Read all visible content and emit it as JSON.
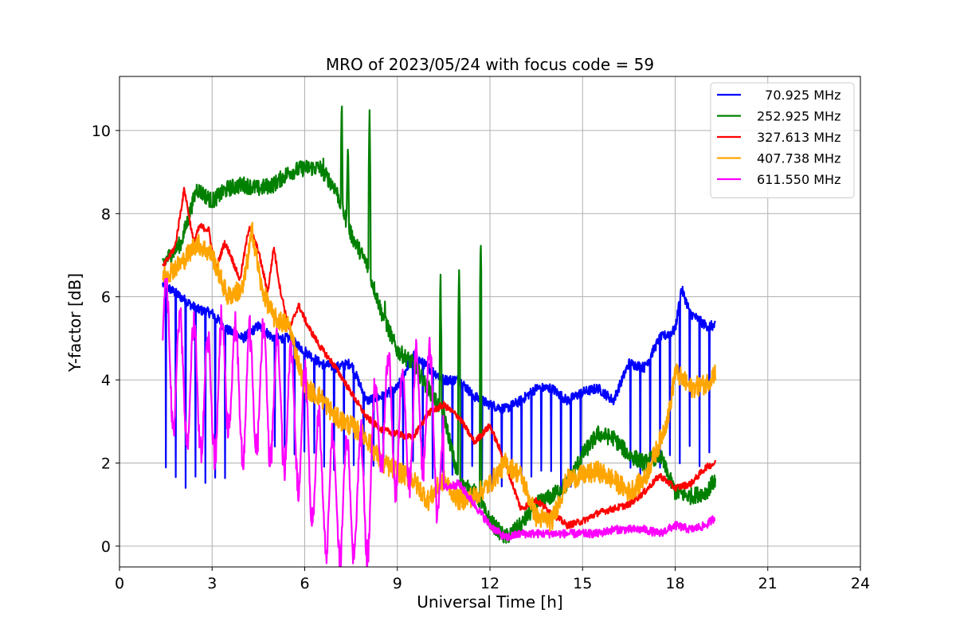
{
  "chart_data": {
    "type": "line",
    "title": "MRO of 2023/05/24 with focus code = 59",
    "xlabel": "Universal Time [h]",
    "ylabel": "Y-factor [dB]",
    "xlim": [
      0,
      24
    ],
    "ylim": [
      -0.5,
      11.3
    ],
    "xticks": [
      0,
      3,
      6,
      9,
      12,
      15,
      18,
      21,
      24
    ],
    "yticks": [
      0,
      2,
      4,
      6,
      8,
      10
    ],
    "grid": true,
    "legend_position": "top-right",
    "series": [
      {
        "name": "  70.925 MHz",
        "color": "#0000ff",
        "noise": 0.12,
        "dip_period": 0.32,
        "dip_start": 1.5,
        "dip_end": 19.3,
        "dip_value": 1.5,
        "x": [
          1.4,
          1.8,
          2.5,
          3.0,
          3.5,
          4.0,
          4.5,
          5.0,
          5.5,
          6.0,
          6.5,
          7.0,
          7.5,
          8.0,
          8.5,
          9.0,
          9.5,
          10.0,
          10.5,
          11.0,
          11.5,
          12.0,
          12.5,
          13.0,
          13.5,
          14.0,
          14.5,
          15.0,
          15.5,
          16.0,
          16.5,
          17.0,
          17.5,
          18.0,
          18.2,
          18.5,
          19.0,
          19.3
        ],
        "y": [
          6.3,
          6.1,
          5.7,
          5.6,
          5.2,
          5.0,
          5.3,
          5.0,
          5.0,
          4.7,
          4.4,
          4.3,
          4.4,
          3.5,
          3.6,
          3.8,
          4.6,
          4.3,
          4.0,
          4.0,
          3.6,
          3.4,
          3.3,
          3.5,
          3.8,
          3.8,
          3.5,
          3.7,
          3.8,
          3.5,
          4.4,
          4.3,
          5.0,
          5.2,
          6.2,
          5.6,
          5.3,
          5.3
        ]
      },
      {
        "name": "252.925 MHz",
        "color": "#008000",
        "noise": 0.2,
        "spikes": [
          [
            7.2,
            10.8
          ],
          [
            7.4,
            9.8
          ],
          [
            8.1,
            10.5
          ],
          [
            10.4,
            6.6
          ],
          [
            11.0,
            6.8
          ],
          [
            11.7,
            7.6
          ],
          [
            8.6,
            6.0
          ],
          [
            6.6,
            9.6
          ]
        ],
        "x": [
          1.4,
          2.0,
          2.5,
          3.0,
          3.5,
          4.0,
          4.5,
          5.0,
          5.5,
          6.0,
          6.5,
          7.0,
          7.5,
          8.0,
          8.5,
          9.0,
          9.5,
          10.0,
          10.5,
          11.0,
          11.5,
          12.0,
          12.5,
          13.0,
          13.5,
          14.0,
          14.5,
          15.0,
          15.5,
          16.0,
          16.5,
          17.0,
          17.5,
          18.0,
          18.5,
          19.0,
          19.3
        ],
        "y": [
          6.8,
          7.3,
          8.6,
          8.3,
          8.6,
          8.7,
          8.6,
          8.7,
          9.0,
          9.1,
          9.1,
          8.6,
          7.5,
          6.8,
          5.6,
          4.7,
          4.4,
          3.8,
          3.2,
          1.5,
          1.3,
          0.6,
          0.2,
          0.5,
          1.0,
          1.2,
          1.5,
          2.2,
          2.7,
          2.6,
          2.2,
          2.0,
          2.2,
          1.3,
          1.2,
          1.3,
          1.6
        ]
      },
      {
        "name": "327.613 MHz",
        "color": "#ff0000",
        "noise": 0.08,
        "x": [
          1.4,
          1.8,
          2.1,
          2.4,
          2.6,
          2.9,
          3.1,
          3.4,
          3.6,
          3.9,
          4.2,
          4.5,
          4.8,
          5.0,
          5.2,
          5.5,
          5.8,
          6.1,
          6.5,
          7.0,
          7.5,
          8.0,
          8.5,
          9.0,
          9.5,
          10.0,
          10.5,
          11.0,
          11.5,
          12.0,
          12.5,
          13.0,
          13.5,
          14.0,
          14.5,
          15.0,
          15.5,
          16.0,
          16.5,
          17.0,
          17.5,
          18.0,
          18.5,
          19.0,
          19.3
        ],
        "y": [
          6.7,
          7.2,
          8.6,
          7.3,
          7.7,
          7.6,
          6.6,
          7.3,
          7.0,
          6.4,
          7.7,
          7.1,
          6.1,
          7.2,
          6.2,
          5.2,
          5.8,
          5.3,
          4.8,
          4.3,
          3.7,
          3.1,
          2.8,
          2.7,
          2.6,
          3.2,
          3.4,
          3.1,
          2.5,
          2.9,
          2.0,
          0.9,
          1.1,
          0.8,
          0.5,
          0.6,
          0.8,
          0.9,
          1.0,
          1.3,
          1.7,
          1.4,
          1.5,
          1.9,
          2.0
        ]
      },
      {
        "name": "407.738 MHz",
        "color": "#ffa500",
        "noise": 0.25,
        "x": [
          1.4,
          2.0,
          2.5,
          3.0,
          3.5,
          4.0,
          4.3,
          4.6,
          5.0,
          5.5,
          6.0,
          6.5,
          7.0,
          7.5,
          8.0,
          8.5,
          9.0,
          9.5,
          10.0,
          10.5,
          11.0,
          11.5,
          12.0,
          12.5,
          13.0,
          13.5,
          14.0,
          14.5,
          15.0,
          15.5,
          16.0,
          16.5,
          17.0,
          17.5,
          17.8,
          18.0,
          18.5,
          19.0,
          19.3
        ],
        "y": [
          6.5,
          6.8,
          7.3,
          7.0,
          6.0,
          6.2,
          7.6,
          6.2,
          5.5,
          5.3,
          3.8,
          3.6,
          3.1,
          2.9,
          2.6,
          2.0,
          1.8,
          1.6,
          1.1,
          1.6,
          1.1,
          1.2,
          1.5,
          2.0,
          1.7,
          0.7,
          0.6,
          1.6,
          1.7,
          1.8,
          1.6,
          1.3,
          1.6,
          2.5,
          3.2,
          4.2,
          3.8,
          3.9,
          4.2
        ]
      },
      {
        "name": "611.550 MHz",
        "color": "#ff00ff",
        "noise": 0.1,
        "osc_end": 10.5,
        "osc_period": 0.45,
        "osc_amp": 1.9,
        "x": [
          1.4,
          2.0,
          2.5,
          3.0,
          3.5,
          4.0,
          4.5,
          5.0,
          5.5,
          6.0,
          6.5,
          7.0,
          7.5,
          8.0,
          8.5,
          9.0,
          9.5,
          10.0,
          10.5,
          11.0,
          11.5,
          12.0,
          12.5,
          13.0,
          13.5,
          14.0,
          14.5,
          15.0,
          15.5,
          16.0,
          16.5,
          17.0,
          17.5,
          18.0,
          18.5,
          19.0,
          19.3
        ],
        "y": [
          5.0,
          4.0,
          3.8,
          3.5,
          4.3,
          3.5,
          3.8,
          3.6,
          3.3,
          2.7,
          1.5,
          1.2,
          1.2,
          1.1,
          3.5,
          2.7,
          3.0,
          3.5,
          1.4,
          1.5,
          1.0,
          0.5,
          0.2,
          0.3,
          0.3,
          0.3,
          0.3,
          0.3,
          0.3,
          0.4,
          0.4,
          0.4,
          0.3,
          0.5,
          0.4,
          0.5,
          0.7
        ]
      }
    ]
  }
}
